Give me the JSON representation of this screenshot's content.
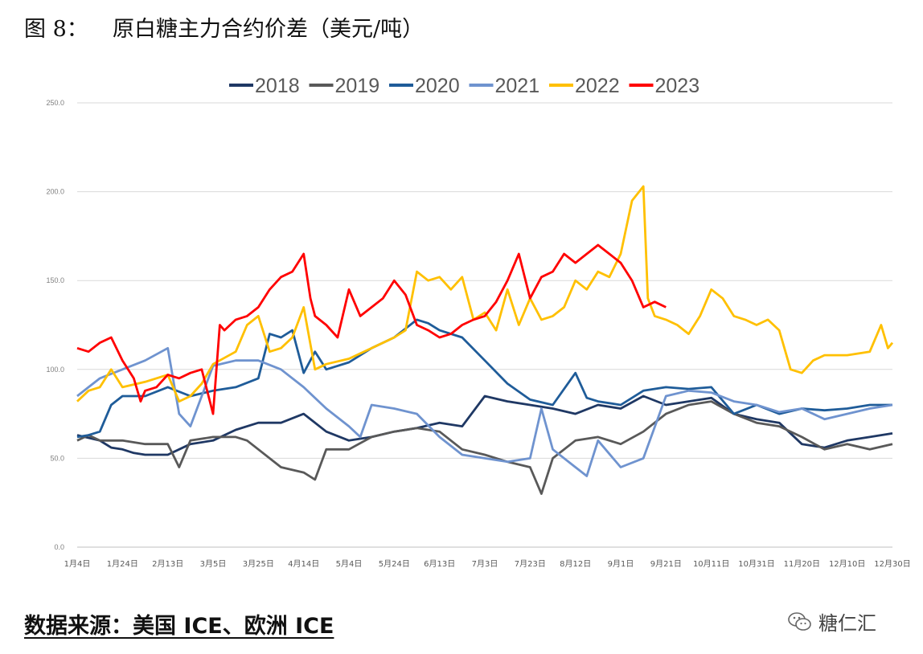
{
  "figure": {
    "label": "图 8：",
    "title": "原白糖主力合约价差（美元/吨）"
  },
  "source_note": "数据来源：美国 ICE、欧洲 ICE",
  "watermark": {
    "text": "糖仁汇",
    "icon": "wechat-icon"
  },
  "chart_data": {
    "type": "line",
    "title": "原白糖主力合约价差（美元/吨）",
    "xlabel": "",
    "ylabel": "",
    "ylim": [
      0,
      250
    ],
    "yticks": [
      "0.0",
      "50.0",
      "100.0",
      "150.0",
      "200.0",
      "250.0"
    ],
    "x_range": [
      0,
      360
    ],
    "grid": "horizontal",
    "legend_position": "top",
    "xticks": [
      {
        "label": "1月4日",
        "day": 0
      },
      {
        "label": "1月24日",
        "day": 20
      },
      {
        "label": "2月13日",
        "day": 40
      },
      {
        "label": "3月5日",
        "day": 60
      },
      {
        "label": "3月25日",
        "day": 80
      },
      {
        "label": "4月14日",
        "day": 100
      },
      {
        "label": "5月4日",
        "day": 120
      },
      {
        "label": "5月24日",
        "day": 140
      },
      {
        "label": "6月13日",
        "day": 160
      },
      {
        "label": "7月3日",
        "day": 180
      },
      {
        "label": "7月23日",
        "day": 200
      },
      {
        "label": "8月12日",
        "day": 220
      },
      {
        "label": "9月1日",
        "day": 240
      },
      {
        "label": "9月21日",
        "day": 260
      },
      {
        "label": "10月11日",
        "day": 280
      },
      {
        "label": "10月31日",
        "day": 300
      },
      {
        "label": "11月20日",
        "day": 320
      },
      {
        "label": "12月10日",
        "day": 340
      },
      {
        "label": "12月30日",
        "day": 360
      }
    ],
    "series": [
      {
        "name": "2018",
        "color": "#1f3864",
        "x": [
          0,
          10,
          15,
          20,
          25,
          30,
          40,
          45,
          50,
          60,
          70,
          80,
          90,
          100,
          110,
          120,
          130,
          140,
          150,
          160,
          170,
          180,
          190,
          200,
          210,
          220,
          230,
          240,
          250,
          260,
          270,
          280,
          290,
          300,
          310,
          320,
          330,
          340,
          350,
          360
        ],
        "y": [
          63,
          60,
          56,
          55,
          53,
          52,
          52,
          55,
          58,
          60,
          66,
          70,
          70,
          75,
          65,
          60,
          62,
          65,
          67,
          70,
          68,
          85,
          82,
          80,
          78,
          75,
          80,
          78,
          85,
          80,
          82,
          84,
          75,
          72,
          70,
          58,
          56,
          60,
          62,
          64
        ]
      },
      {
        "name": "2019",
        "color": "#595959",
        "x": [
          0,
          5,
          10,
          20,
          30,
          40,
          45,
          50,
          60,
          70,
          75,
          80,
          90,
          100,
          105,
          110,
          120,
          130,
          140,
          150,
          160,
          170,
          180,
          190,
          200,
          205,
          210,
          220,
          230,
          240,
          250,
          260,
          270,
          280,
          290,
          300,
          310,
          320,
          330,
          340,
          350,
          360
        ],
        "y": [
          60,
          63,
          60,
          60,
          58,
          58,
          45,
          60,
          62,
          62,
          60,
          55,
          45,
          42,
          38,
          55,
          55,
          62,
          65,
          67,
          65,
          55,
          52,
          48,
          45,
          30,
          50,
          60,
          62,
          58,
          65,
          75,
          80,
          82,
          75,
          70,
          68,
          62,
          55,
          58,
          55,
          58
        ]
      },
      {
        "name": "2020",
        "color": "#1f5c99",
        "x": [
          0,
          5,
          10,
          15,
          20,
          30,
          40,
          50,
          60,
          70,
          80,
          85,
          90,
          95,
          100,
          105,
          110,
          120,
          130,
          140,
          150,
          155,
          160,
          170,
          180,
          190,
          200,
          210,
          220,
          225,
          230,
          240,
          250,
          260,
          270,
          280,
          290,
          300,
          310,
          320,
          330,
          340,
          350,
          360
        ],
        "y": [
          62,
          63,
          65,
          80,
          85,
          85,
          90,
          85,
          88,
          90,
          95,
          120,
          118,
          122,
          98,
          110,
          100,
          104,
          112,
          118,
          128,
          126,
          122,
          118,
          105,
          92,
          83,
          80,
          98,
          84,
          82,
          80,
          88,
          90,
          89,
          90,
          75,
          80,
          75,
          78,
          77,
          78,
          80,
          80
        ]
      },
      {
        "name": "2021",
        "color": "#6f93cf",
        "x": [
          0,
          5,
          10,
          20,
          30,
          40,
          45,
          50,
          60,
          70,
          80,
          90,
          100,
          110,
          120,
          125,
          130,
          140,
          150,
          160,
          170,
          180,
          190,
          200,
          205,
          210,
          220,
          225,
          230,
          240,
          250,
          260,
          270,
          280,
          290,
          300,
          310,
          320,
          330,
          340,
          350,
          360
        ],
        "y": [
          85,
          90,
          95,
          100,
          105,
          112,
          75,
          68,
          102,
          105,
          105,
          100,
          90,
          78,
          68,
          62,
          80,
          78,
          75,
          62,
          52,
          50,
          48,
          50,
          78,
          55,
          45,
          40,
          60,
          45,
          50,
          85,
          88,
          87,
          82,
          80,
          76,
          78,
          72,
          75,
          78,
          80
        ]
      },
      {
        "name": "2022",
        "color": "#ffc000",
        "x": [
          0,
          5,
          10,
          15,
          20,
          30,
          40,
          45,
          50,
          55,
          60,
          70,
          75,
          80,
          85,
          90,
          95,
          100,
          105,
          110,
          120,
          130,
          140,
          145,
          150,
          155,
          160,
          165,
          170,
          175,
          180,
          185,
          190,
          195,
          200,
          205,
          210,
          215,
          220,
          225,
          230,
          235,
          240,
          245,
          250,
          252,
          255,
          260,
          265,
          270,
          275,
          280,
          285,
          290,
          295,
          300,
          305,
          310,
          315,
          320,
          325,
          330,
          340,
          350,
          355,
          358,
          360
        ],
        "y": [
          82,
          88,
          90,
          100,
          90,
          93,
          97,
          82,
          85,
          92,
          103,
          110,
          125,
          130,
          110,
          112,
          118,
          135,
          100,
          103,
          106,
          112,
          118,
          122,
          155,
          150,
          152,
          145,
          152,
          128,
          132,
          122,
          145,
          125,
          140,
          128,
          130,
          135,
          150,
          145,
          155,
          152,
          165,
          195,
          203,
          140,
          130,
          128,
          125,
          120,
          130,
          145,
          140,
          130,
          128,
          125,
          128,
          122,
          100,
          98,
          105,
          108,
          108,
          110,
          125,
          112,
          115
        ]
      },
      {
        "name": "2023",
        "color": "#ff0000",
        "x": [
          0,
          5,
          10,
          15,
          20,
          25,
          28,
          30,
          35,
          40,
          45,
          50,
          55,
          60,
          63,
          65,
          70,
          75,
          80,
          85,
          90,
          95,
          100,
          103,
          105,
          110,
          115,
          120,
          125,
          130,
          135,
          140,
          145,
          150,
          155,
          160,
          165,
          170,
          175,
          180,
          185,
          190,
          195,
          200,
          205,
          210,
          215,
          220,
          225,
          230,
          235,
          240,
          245,
          250,
          255,
          260
        ],
        "y": [
          112,
          110,
          115,
          118,
          105,
          95,
          82,
          88,
          90,
          97,
          95,
          98,
          100,
          75,
          125,
          122,
          128,
          130,
          135,
          145,
          152,
          155,
          165,
          140,
          130,
          125,
          118,
          145,
          130,
          135,
          140,
          150,
          142,
          125,
          122,
          118,
          120,
          125,
          128,
          130,
          138,
          150,
          165,
          140,
          152,
          155,
          165,
          160,
          165,
          170,
          165,
          160,
          150,
          135,
          138,
          135
        ]
      }
    ]
  }
}
